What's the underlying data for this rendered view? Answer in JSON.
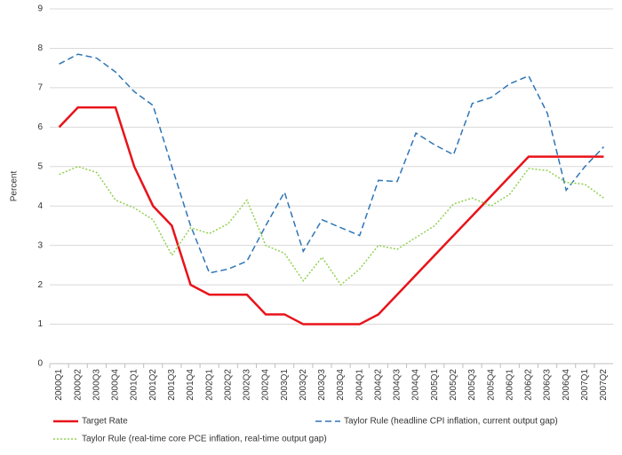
{
  "chart_data": {
    "type": "line",
    "y_label": "Percent",
    "categories": [
      "2000Q1",
      "2000Q2",
      "2000Q3",
      "2000Q4",
      "2001Q1",
      "2001Q2",
      "2001Q3",
      "2001Q4",
      "2002Q1",
      "2002Q2",
      "2002Q3",
      "2002Q4",
      "2003Q1",
      "2003Q2",
      "2003Q3",
      "2003Q4",
      "2004Q1",
      "2004Q2",
      "2004Q3",
      "2004Q4",
      "2005Q1",
      "2005Q2",
      "2005Q3",
      "2005Q4",
      "2006Q1",
      "2006Q2",
      "2006Q3",
      "2006Q4",
      "2007Q1",
      "2007Q2"
    ],
    "series": [
      {
        "name": "Target Rate",
        "color": "#e8131a",
        "line_style": "solid",
        "values": [
          6.0,
          6.5,
          6.5,
          6.5,
          5.0,
          4.0,
          3.5,
          2.0,
          1.75,
          1.75,
          1.75,
          1.25,
          1.25,
          1.0,
          1.0,
          1.0,
          1.0,
          1.25,
          1.75,
          2.25,
          2.75,
          3.25,
          3.75,
          4.25,
          4.75,
          5.25,
          5.25,
          5.25,
          5.25,
          5.25
        ]
      },
      {
        "name": "Taylor Rule (headline CPI inflation, current output gap)",
        "color": "#2e75b6",
        "line_style": "dashed",
        "values": [
          7.6,
          7.85,
          7.75,
          7.4,
          6.9,
          6.55,
          5.0,
          3.5,
          2.3,
          2.4,
          2.6,
          3.5,
          4.35,
          2.85,
          3.65,
          3.45,
          3.25,
          4.65,
          4.62,
          5.85,
          5.55,
          5.3,
          6.6,
          6.75,
          7.1,
          7.3,
          6.35,
          4.4,
          5.0,
          5.5
        ]
      },
      {
        "name": "Taylor Rule (real-time core PCE inflation, real-time output gap)",
        "color": "#92d050",
        "line_style": "dotted",
        "values": [
          4.8,
          5.0,
          4.85,
          4.15,
          3.95,
          3.65,
          2.75,
          3.45,
          3.3,
          3.55,
          4.15,
          3.0,
          2.8,
          2.1,
          2.7,
          2.0,
          2.4,
          3.0,
          2.9,
          3.2,
          3.5,
          4.05,
          4.2,
          4.0,
          4.3,
          4.95,
          4.9,
          4.6,
          4.55,
          4.2
        ]
      }
    ],
    "ylim": [
      0,
      9
    ],
    "yticks": [
      0,
      1,
      2,
      3,
      4,
      5,
      6,
      7,
      8,
      9
    ],
    "grid": true,
    "legend": "bottom"
  }
}
